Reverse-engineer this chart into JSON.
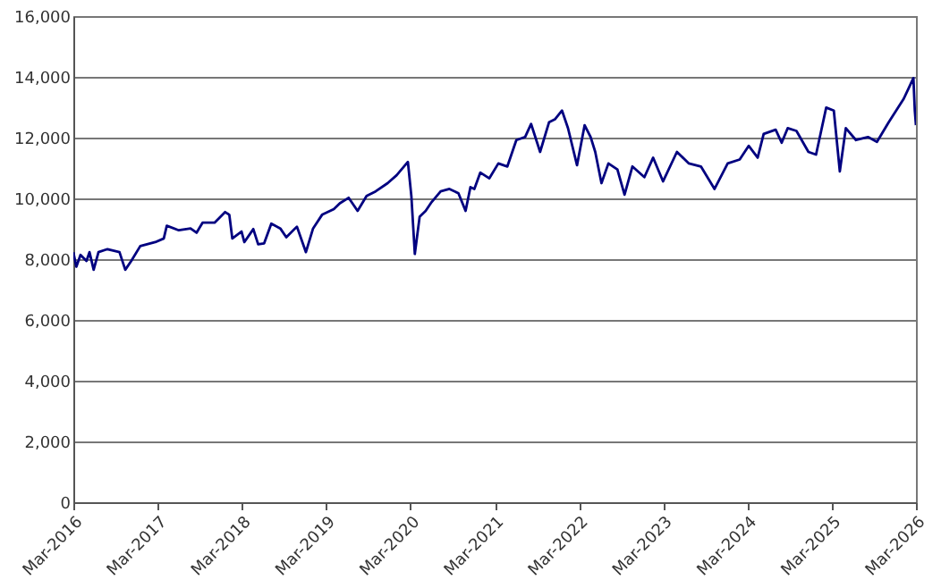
{
  "chart_data": {
    "type": "line",
    "x": [
      "2016-03-01",
      "2016-03-14",
      "2016-04-01",
      "2016-04-27",
      "2016-05-10",
      "2016-05-28",
      "2016-06-18",
      "2016-07-27",
      "2016-09-17",
      "2016-10-12",
      "2016-11-07",
      "2016-12-16",
      "2017-02-19",
      "2017-03-28",
      "2017-04-10",
      "2017-06-01",
      "2017-07-22",
      "2017-08-17",
      "2017-09-12",
      "2017-11-03",
      "2017-12-19",
      "2018-01-06",
      "2018-01-19",
      "2018-02-28",
      "2018-03-12",
      "2018-04-20",
      "2018-05-11",
      "2018-06-06",
      "2018-07-07",
      "2018-08-15",
      "2018-09-10",
      "2018-10-26",
      "2018-12-04",
      "2019-01-04",
      "2019-02-12",
      "2019-04-04",
      "2019-04-30",
      "2019-06-07",
      "2019-07-16",
      "2019-08-24",
      "2019-10-02",
      "2019-11-23",
      "2020-01-01",
      "2020-02-19",
      "2020-03-05",
      "2020-03-20",
      "2020-04-10",
      "2020-05-06",
      "2020-06-01",
      "2020-07-10",
      "2020-08-17",
      "2020-09-25",
      "2020-10-26",
      "2020-11-16",
      "2020-12-03",
      "2020-12-29",
      "2021-02-06",
      "2021-03-17",
      "2021-04-25",
      "2021-06-03",
      "2021-07-11",
      "2021-08-06",
      "2021-09-14",
      "2021-10-23",
      "2021-11-17",
      "2021-12-18",
      "2022-01-13",
      "2022-02-21",
      "2022-03-26",
      "2022-04-21",
      "2022-05-11",
      "2022-06-07",
      "2022-07-07",
      "2022-08-15",
      "2022-09-15",
      "2022-10-19",
      "2022-12-10",
      "2023-01-17",
      "2023-03-01",
      "2023-04-30",
      "2023-06-21",
      "2023-08-12",
      "2023-10-10",
      "2023-12-06",
      "2024-01-27",
      "2024-03-06",
      "2024-04-14",
      "2024-05-10",
      "2024-07-01",
      "2024-07-27",
      "2024-08-22",
      "2024-09-29",
      "2024-11-20",
      "2024-12-23",
      "2025-02-05",
      "2025-03-10",
      "2025-04-05",
      "2025-05-01",
      "2025-06-14",
      "2025-08-05",
      "2025-09-13",
      "2025-11-03",
      "2026-01-07",
      "2026-02-18",
      "2026-02-24",
      "2026-03-01"
    ],
    "series": [
      {
        "color": "#000080",
        "values": [
          8230,
          7750,
          8140,
          7940,
          8230,
          7650,
          8230,
          8330,
          8230,
          7650,
          7940,
          8430,
          8560,
          8680,
          9100,
          8950,
          9010,
          8870,
          9200,
          9200,
          9550,
          9460,
          8680,
          8910,
          8560,
          8990,
          8490,
          8520,
          9170,
          9010,
          8720,
          9070,
          8230,
          9010,
          9460,
          9650,
          9840,
          10020,
          9590,
          10080,
          10230,
          10500,
          10760,
          11200,
          10080,
          8170,
          9400,
          9590,
          9880,
          10230,
          10310,
          10170,
          9590,
          10370,
          10310,
          10850,
          10660,
          11150,
          11050,
          11920,
          12020,
          12450,
          11530,
          12510,
          12600,
          12890,
          12310,
          11090,
          12410,
          12020,
          11530,
          10500,
          11150,
          10950,
          10120,
          11050,
          10700,
          11340,
          10560,
          11530,
          11150,
          11050,
          10310,
          11150,
          11280,
          11730,
          11340,
          12120,
          12260,
          11830,
          12310,
          12220,
          11530,
          11440,
          12990,
          12890,
          10890,
          12310,
          11920,
          12020,
          11860,
          12510,
          13280,
          13960,
          12890,
          12410
        ]
      }
    ],
    "xlim": [
      "2016-03-01",
      "2026-03-01"
    ],
    "xticks": [
      {
        "value": "2016-03-01",
        "label": "Mar-2016"
      },
      {
        "value": "2017-03-01",
        "label": "Mar-2017"
      },
      {
        "value": "2018-03-01",
        "label": "Mar-2018"
      },
      {
        "value": "2019-03-01",
        "label": "Mar-2019"
      },
      {
        "value": "2020-03-01",
        "label": "Mar-2020"
      },
      {
        "value": "2021-03-01",
        "label": "Mar-2021"
      },
      {
        "value": "2022-03-01",
        "label": "Mar-2022"
      },
      {
        "value": "2023-03-01",
        "label": "Mar-2023"
      },
      {
        "value": "2024-03-01",
        "label": "Mar-2024"
      },
      {
        "value": "2025-03-01",
        "label": "Mar-2025"
      },
      {
        "value": "2026-03-01",
        "label": "Mar-2026"
      }
    ],
    "ylim": [
      0,
      16000
    ],
    "yticks": [
      {
        "value": 0,
        "label": "0"
      },
      {
        "value": 2000,
        "label": "2,000"
      },
      {
        "value": 4000,
        "label": "4,000"
      },
      {
        "value": 6000,
        "label": "6,000"
      },
      {
        "value": 8000,
        "label": "8,000"
      },
      {
        "value": 10000,
        "label": "10,000"
      },
      {
        "value": 12000,
        "label": "12,000"
      },
      {
        "value": 14000,
        "label": "14,000"
      },
      {
        "value": 16000,
        "label": "16,000"
      }
    ],
    "grid": "y",
    "marker": "none",
    "line_style": "solid"
  }
}
